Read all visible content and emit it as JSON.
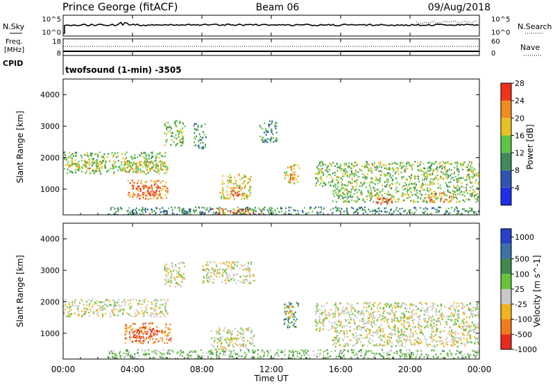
{
  "header": {
    "site": "Prince George (fitACF)",
    "beam": "Beam 06",
    "date": "09/Aug/2018"
  },
  "nsky_panel": {
    "left_label": "N.Sky",
    "left_ticks": [
      "10^5",
      "10^0"
    ],
    "right_ticks": [
      "10^5",
      "10^0"
    ],
    "right_label": "N.Search"
  },
  "freq_panel": {
    "left_label_1": "Freq.",
    "left_label_2": "[MHz]",
    "left_ticks": [
      "18",
      "8"
    ],
    "right_ticks": [
      "60",
      "0"
    ],
    "right_label": "Nave",
    "cpid_label": "CPID",
    "cpid_text": "twofsound (1-min) -3505"
  },
  "x_axis": {
    "ticks": [
      "00:00",
      "04:00",
      "08:00",
      "12:00",
      "16:00",
      "20:00",
      "00:00"
    ],
    "label": "Time UT"
  },
  "power_panel": {
    "ylabel": "Slant Range [km]",
    "yticks": [
      "1000",
      "2000",
      "3000",
      "4000"
    ],
    "colorbar_label": "Power [dB]",
    "colorbar_ticks": [
      "4",
      "8",
      "12",
      "16",
      "20",
      "24",
      "28"
    ],
    "colors": [
      "#1c2ee8",
      "#2e55b0",
      "#3f8a5a",
      "#5fc34a",
      "#e7c21f",
      "#f08b1f",
      "#f0321a"
    ]
  },
  "velocity_panel": {
    "ylabel": "Slant Range [km]",
    "yticks": [
      "1000",
      "2000",
      "3000",
      "4000"
    ],
    "colorbar_label": "Velocity [m s^-1]",
    "colorbar_ticks": [
      "1000",
      "500",
      "100",
      "25",
      "-25",
      "-100",
      "-500",
      "-1000"
    ],
    "colors": [
      "#2442c8",
      "#3a73a8",
      "#3e8a4c",
      "#66c43c",
      "#c8c8c8",
      "#f0b420",
      "#f07c1e",
      "#e82a1a"
    ]
  },
  "chart_data": [
    {
      "type": "heatmap",
      "title": "Power",
      "x_range_hours": [
        0,
        24
      ],
      "y_range_km": [
        180,
        4500
      ],
      "colorbar_range_db": [
        0,
        30
      ],
      "regions": [
        {
          "t0": 0.0,
          "t1": 6.0,
          "r0": 1500,
          "r1": 2200,
          "level": 3
        },
        {
          "t0": 0.3,
          "t1": 2.3,
          "r0": 1650,
          "r1": 1950,
          "level": 4
        },
        {
          "t0": 3.2,
          "t1": 5.8,
          "r0": 1550,
          "r1": 1900,
          "level": 4
        },
        {
          "t0": 3.7,
          "t1": 6.0,
          "r0": 700,
          "r1": 1300,
          "level": 5
        },
        {
          "t0": 4.2,
          "t1": 5.6,
          "r0": 800,
          "r1": 1150,
          "level": 6
        },
        {
          "t0": 5.8,
          "t1": 7.0,
          "r0": 2400,
          "r1": 3200,
          "level": 3
        },
        {
          "t0": 7.5,
          "t1": 8.2,
          "r0": 2300,
          "r1": 3100,
          "level": 2
        },
        {
          "t0": 9.0,
          "t1": 10.8,
          "r0": 700,
          "r1": 1500,
          "level": 4
        },
        {
          "t0": 9.6,
          "t1": 10.2,
          "r0": 800,
          "r1": 1100,
          "level": 6
        },
        {
          "t0": 11.3,
          "t1": 12.3,
          "r0": 2500,
          "r1": 3200,
          "level": 2
        },
        {
          "t0": 12.7,
          "t1": 13.6,
          "r0": 1200,
          "r1": 1800,
          "level": 4
        },
        {
          "t0": 13.0,
          "t1": 13.4,
          "r0": 1300,
          "r1": 1500,
          "level": 6
        },
        {
          "t0": 14.5,
          "t1": 24.0,
          "r0": 1100,
          "r1": 1900,
          "level": 3
        },
        {
          "t0": 15.5,
          "t1": 24.0,
          "r0": 600,
          "r1": 1100,
          "level": 3
        },
        {
          "t0": 18.0,
          "t1": 19.0,
          "r0": 550,
          "r1": 800,
          "level": 6
        },
        {
          "t0": 21.0,
          "t1": 22.5,
          "r0": 600,
          "r1": 900,
          "level": 5
        },
        {
          "t0": 2.5,
          "t1": 24.0,
          "r0": 180,
          "r1": 450,
          "level": 2
        },
        {
          "t0": 8.5,
          "t1": 11.5,
          "r0": 180,
          "r1": 400,
          "level": 5
        }
      ]
    },
    {
      "type": "heatmap",
      "title": "Velocity",
      "x_range_hours": [
        0,
        24
      ],
      "y_range_km": [
        180,
        4500
      ],
      "colorbar_range_ms": [
        -1000,
        1000
      ],
      "regions": [
        {
          "t0": 0.0,
          "t1": 6.0,
          "r0": 1550,
          "r1": 2100,
          "level": 4
        },
        {
          "t0": 3.5,
          "t1": 6.2,
          "r0": 700,
          "r1": 1350,
          "level": 6
        },
        {
          "t0": 4.0,
          "t1": 5.4,
          "r0": 850,
          "r1": 1150,
          "level": 7
        },
        {
          "t0": 5.8,
          "t1": 7.0,
          "r0": 2500,
          "r1": 3300,
          "level": 4
        },
        {
          "t0": 8.0,
          "t1": 11.0,
          "r0": 2600,
          "r1": 3300,
          "level": 4
        },
        {
          "t0": 8.5,
          "t1": 11.0,
          "r0": 500,
          "r1": 1200,
          "level": 4
        },
        {
          "t0": 12.7,
          "t1": 13.6,
          "r0": 1200,
          "r1": 2000,
          "level": 2
        },
        {
          "t0": 12.8,
          "t1": 13.2,
          "r0": 1500,
          "r1": 1900,
          "level": 5
        },
        {
          "t0": 14.5,
          "t1": 24.0,
          "r0": 1100,
          "r1": 2000,
          "level": 4
        },
        {
          "t0": 15.5,
          "t1": 24.0,
          "r0": 600,
          "r1": 1100,
          "level": 4
        },
        {
          "t0": 2.5,
          "t1": 24.0,
          "r0": 180,
          "r1": 500,
          "level": 3
        }
      ]
    }
  ]
}
